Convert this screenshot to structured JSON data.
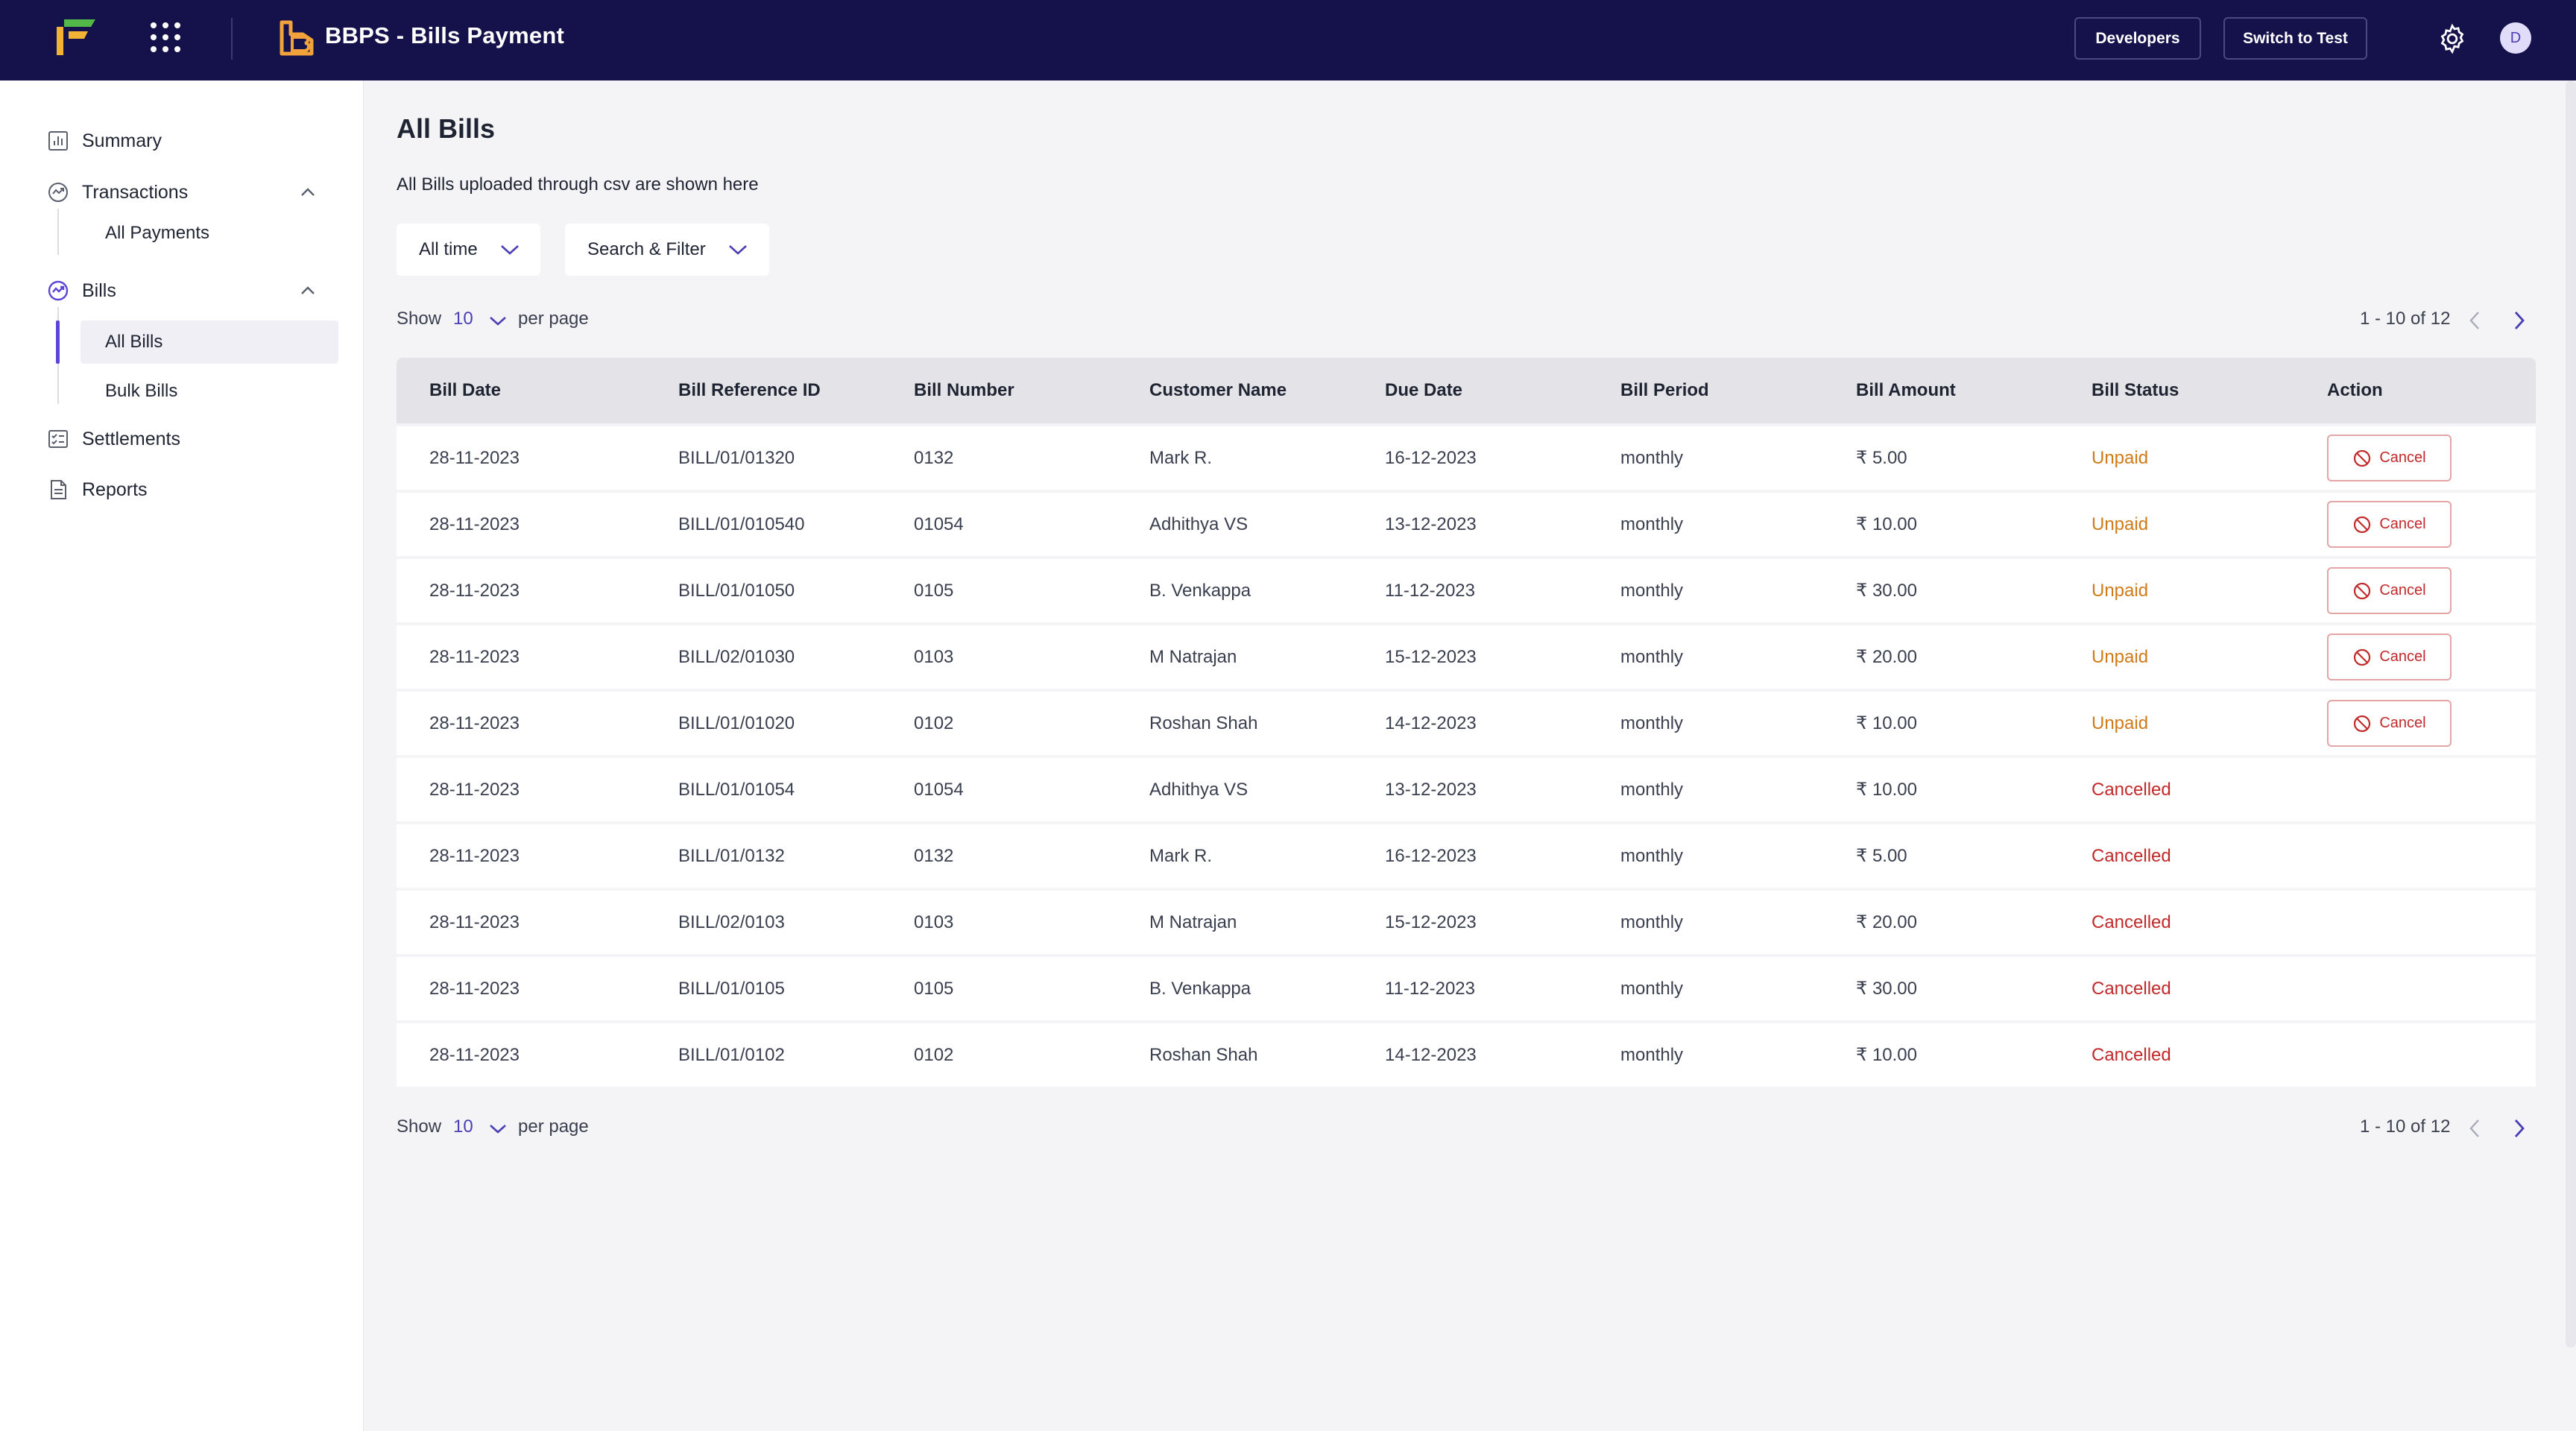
{
  "header": {
    "app_title": "BBPS - Bills Payment",
    "developers_label": "Developers",
    "switch_label": "Switch to Test",
    "avatar_initial": "D",
    "bg_color": "#15124b"
  },
  "sidebar": {
    "items": [
      {
        "label": "Summary",
        "icon": "bar-chart-icon"
      },
      {
        "label": "Transactions",
        "icon": "transactions-icon",
        "expanded": true,
        "children": [
          {
            "label": "All Payments"
          }
        ]
      },
      {
        "label": "Bills",
        "icon": "bills-icon",
        "expanded": true,
        "children": [
          {
            "label": "All Bills",
            "active": true
          },
          {
            "label": "Bulk Bills"
          }
        ]
      },
      {
        "label": "Settlements",
        "icon": "settlements-icon"
      },
      {
        "label": "Reports",
        "icon": "document-icon"
      }
    ]
  },
  "page": {
    "title": "All Bills",
    "description": "All Bills uploaded through csv are shown here",
    "filters": {
      "time": "All time",
      "search": "Search & Filter"
    }
  },
  "pagination": {
    "show_label": "Show",
    "per_page_value": "10",
    "per_page_label": "per page",
    "range": "1 - 10 of 12"
  },
  "table": {
    "columns": [
      "Bill Date",
      "Bill Reference ID",
      "Bill Number",
      "Customer Name",
      "Due Date",
      "Bill Period",
      "Bill Amount",
      "Bill Status",
      "Action"
    ],
    "cancel_label": "Cancel",
    "rows": [
      {
        "bill_date": "28-11-2023",
        "ref_id": "BILL/01/01320",
        "bill_number": "0132",
        "customer": "Mark R.",
        "due_date": "16-12-2023",
        "period": "monthly",
        "amount": "₹ 5.00",
        "status": "Unpaid"
      },
      {
        "bill_date": "28-11-2023",
        "ref_id": "BILL/01/010540",
        "bill_number": "01054",
        "customer": "Adhithya VS",
        "due_date": "13-12-2023",
        "period": "monthly",
        "amount": "₹ 10.00",
        "status": "Unpaid"
      },
      {
        "bill_date": "28-11-2023",
        "ref_id": "BILL/01/01050",
        "bill_number": "0105",
        "customer": "B. Venkappa",
        "due_date": "11-12-2023",
        "period": "monthly",
        "amount": "₹ 30.00",
        "status": "Unpaid"
      },
      {
        "bill_date": "28-11-2023",
        "ref_id": "BILL/02/01030",
        "bill_number": "0103",
        "customer": "M Natrajan",
        "due_date": "15-12-2023",
        "period": "monthly",
        "amount": "₹ 20.00",
        "status": "Unpaid"
      },
      {
        "bill_date": "28-11-2023",
        "ref_id": "BILL/01/01020",
        "bill_number": "0102",
        "customer": "Roshan Shah",
        "due_date": "14-12-2023",
        "period": "monthly",
        "amount": "₹ 10.00",
        "status": "Unpaid"
      },
      {
        "bill_date": "28-11-2023",
        "ref_id": "BILL/01/01054",
        "bill_number": "01054",
        "customer": "Adhithya VS",
        "due_date": "13-12-2023",
        "period": "monthly",
        "amount": "₹ 10.00",
        "status": "Cancelled"
      },
      {
        "bill_date": "28-11-2023",
        "ref_id": "BILL/01/0132",
        "bill_number": "0132",
        "customer": "Mark R.",
        "due_date": "16-12-2023",
        "period": "monthly",
        "amount": "₹ 5.00",
        "status": "Cancelled"
      },
      {
        "bill_date": "28-11-2023",
        "ref_id": "BILL/02/0103",
        "bill_number": "0103",
        "customer": "M Natrajan",
        "due_date": "15-12-2023",
        "period": "monthly",
        "amount": "₹ 20.00",
        "status": "Cancelled"
      },
      {
        "bill_date": "28-11-2023",
        "ref_id": "BILL/01/0105",
        "bill_number": "0105",
        "customer": "B. Venkappa",
        "due_date": "11-12-2023",
        "period": "monthly",
        "amount": "₹ 30.00",
        "status": "Cancelled"
      },
      {
        "bill_date": "28-11-2023",
        "ref_id": "BILL/01/0102",
        "bill_number": "0102",
        "customer": "Roshan Shah",
        "due_date": "14-12-2023",
        "period": "monthly",
        "amount": "₹ 10.00",
        "status": "Cancelled"
      }
    ]
  },
  "colors": {
    "accent": "#5b45d6",
    "unpaid": "#d07a1a",
    "cancelled": "#c22a2a"
  }
}
